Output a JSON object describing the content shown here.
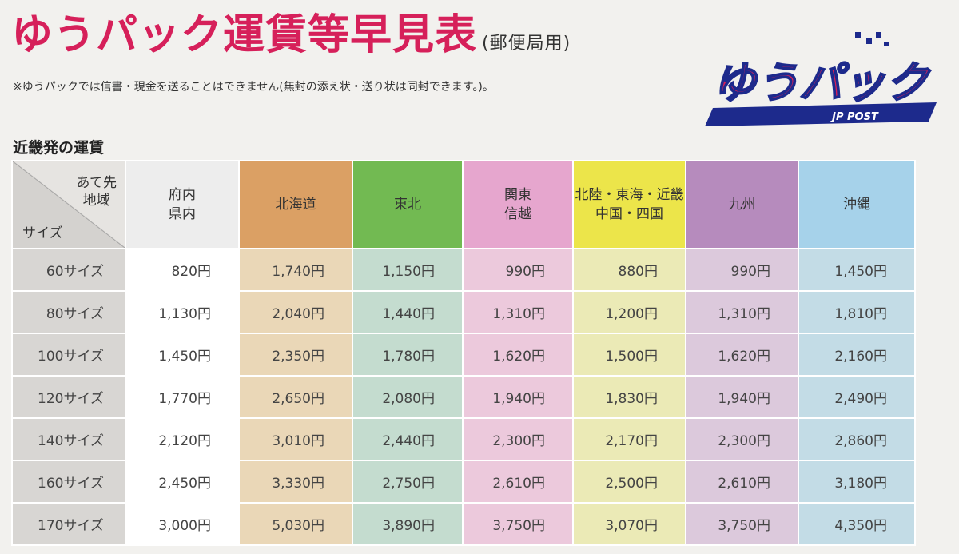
{
  "header": {
    "title": "ゆうパック運賃等早見表",
    "title_suffix": "(郵便局用)",
    "note": "※ゆうパックでは信書・現金を送ることはできません(無封の添え状・送り状は同封できます。)。",
    "section_title": "近畿発の運賃"
  },
  "logo": {
    "text": "ゆうパック",
    "subtext": "JP POST"
  },
  "table": {
    "corner_dest_line1": "あて先",
    "corner_dest_line2": "地域",
    "corner_size": "サイズ",
    "columns": [
      {
        "line1": "府内",
        "line2": "県内",
        "color": "#ededed",
        "cell_color": "#ffffff"
      },
      {
        "line1": "北海道",
        "line2": "",
        "color": "#dba064",
        "cell_color": "#ead7b7"
      },
      {
        "line1": "東北",
        "line2": "",
        "color": "#72ba52",
        "cell_color": "#c4dccf"
      },
      {
        "line1": "関東",
        "line2": "信越",
        "color": "#e6a6ce",
        "cell_color": "#ecc9dc"
      },
      {
        "line1": "北陸・東海・近畿",
        "line2": "中国・四国",
        "color": "#ece54a",
        "cell_color": "#ebeab6"
      },
      {
        "line1": "九州",
        "line2": "",
        "color": "#b68bbd",
        "cell_color": "#dcc9dc"
      },
      {
        "line1": "沖縄",
        "line2": "",
        "color": "#a6d2ea",
        "cell_color": "#c3dce6"
      }
    ],
    "rows": [
      {
        "size": "60サイズ",
        "prices": [
          "820円",
          "1,740円",
          "1,150円",
          "990円",
          "880円",
          "990円",
          "1,450円"
        ]
      },
      {
        "size": "80サイズ",
        "prices": [
          "1,130円",
          "2,040円",
          "1,440円",
          "1,310円",
          "1,200円",
          "1,310円",
          "1,810円"
        ]
      },
      {
        "size": "100サイズ",
        "prices": [
          "1,450円",
          "2,350円",
          "1,780円",
          "1,620円",
          "1,500円",
          "1,620円",
          "2,160円"
        ]
      },
      {
        "size": "120サイズ",
        "prices": [
          "1,770円",
          "2,650円",
          "2,080円",
          "1,940円",
          "1,830円",
          "1,940円",
          "2,490円"
        ]
      },
      {
        "size": "140サイズ",
        "prices": [
          "2,120円",
          "3,010円",
          "2,440円",
          "2,300円",
          "2,170円",
          "2,300円",
          "2,860円"
        ]
      },
      {
        "size": "160サイズ",
        "prices": [
          "2,450円",
          "3,330円",
          "2,750円",
          "2,610円",
          "2,500円",
          "2,610円",
          "3,180円"
        ]
      },
      {
        "size": "170サイズ",
        "prices": [
          "3,000円",
          "5,030円",
          "3,890円",
          "3,750円",
          "3,070円",
          "3,750円",
          "4,350円"
        ]
      }
    ]
  }
}
